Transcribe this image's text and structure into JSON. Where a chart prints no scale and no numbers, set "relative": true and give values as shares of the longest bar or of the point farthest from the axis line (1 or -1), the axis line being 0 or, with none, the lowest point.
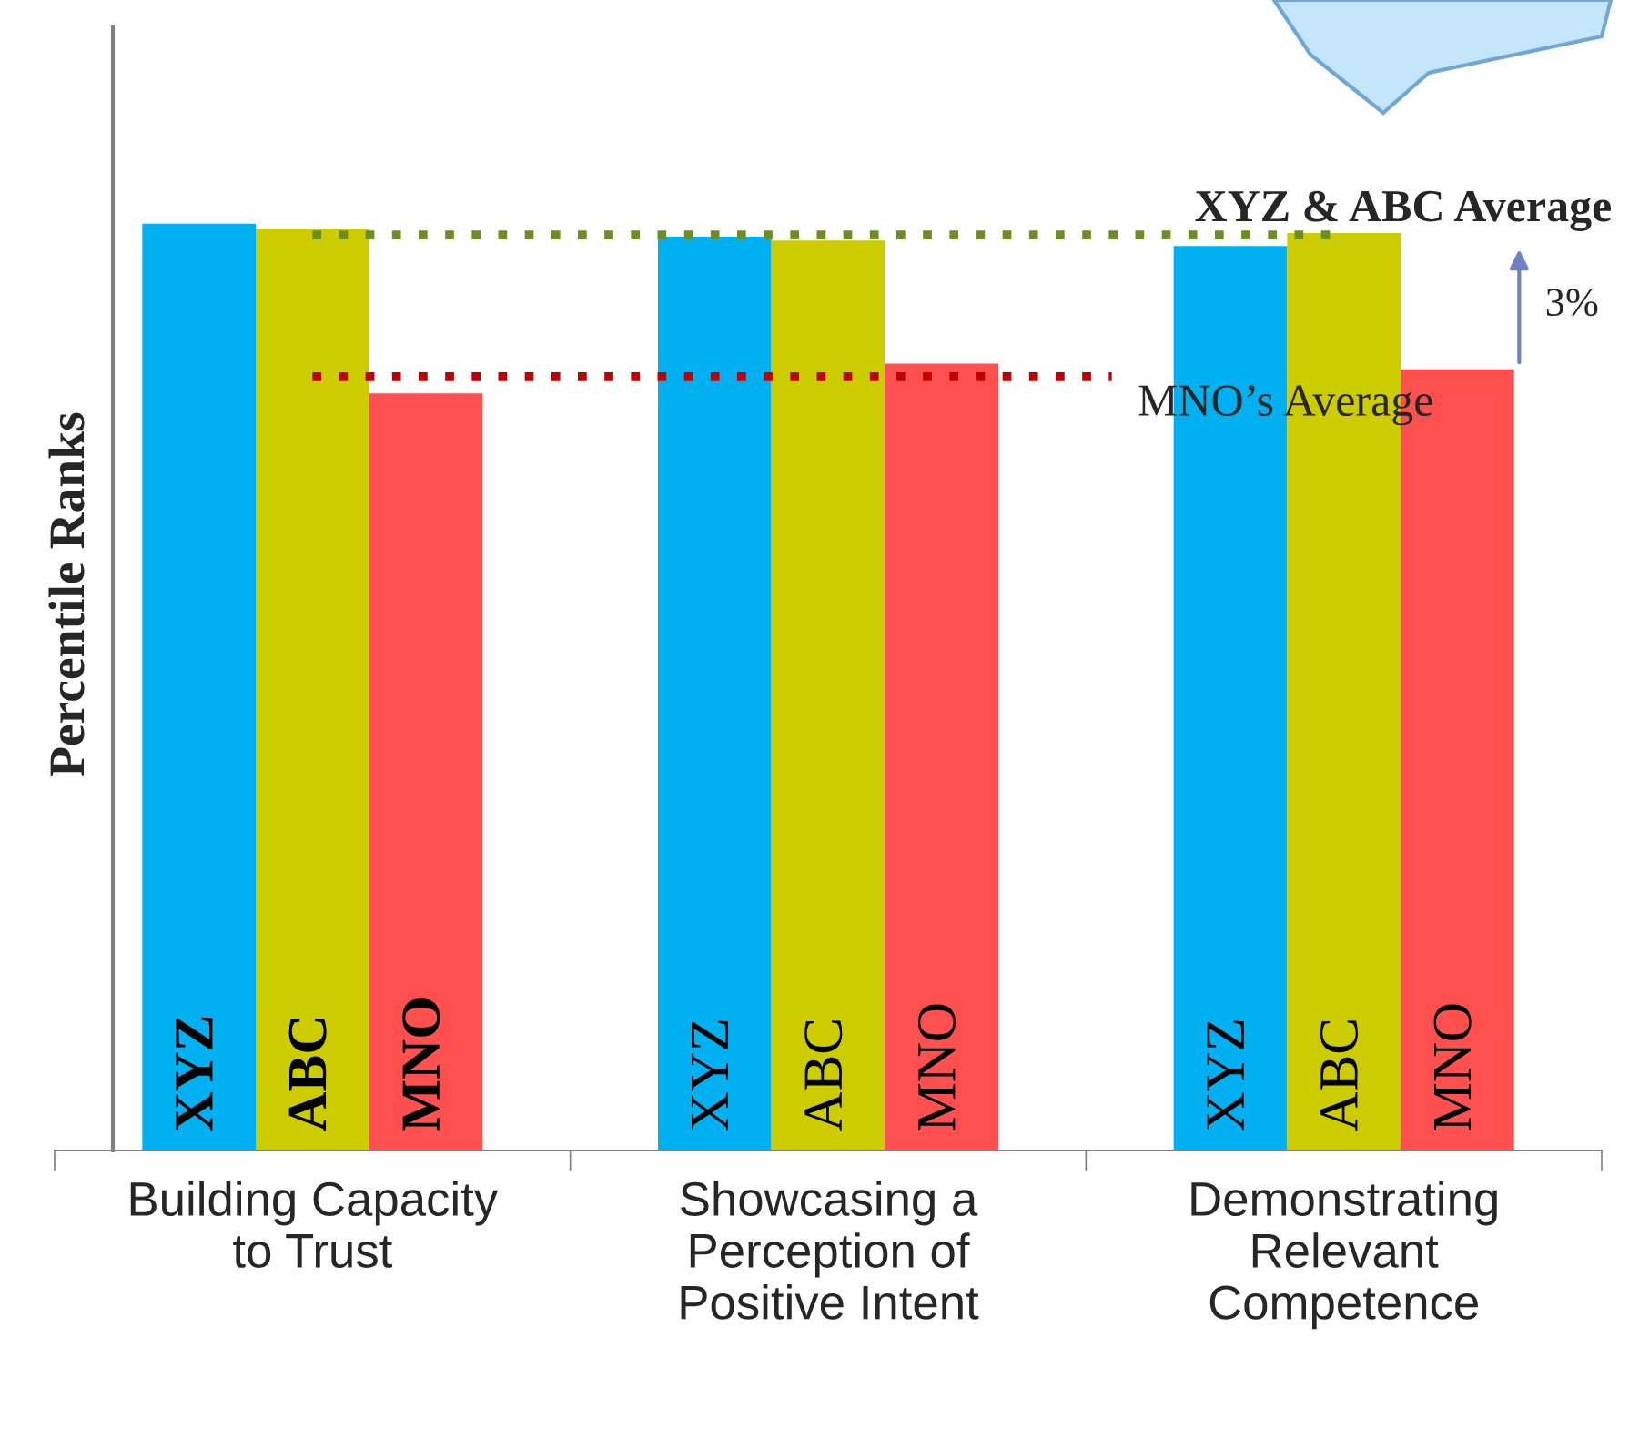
{
  "chart_data": {
    "type": "bar",
    "relative": true,
    "ylabel": "Percentile Ranks",
    "categories": [
      "Building Capacity\nto Trust",
      "Showcasing a\nPerception of\nPositive Intent",
      "Demonstrating\nRelevant\nCompetence"
    ],
    "series": [
      {
        "name": "XYZ",
        "color": "#00b0f0",
        "values": [
          1.0,
          0.986,
          0.976
        ]
      },
      {
        "name": "ABC",
        "color": "#cccc00",
        "values": [
          0.994,
          0.982,
          0.99
        ]
      },
      {
        "name": "MNO",
        "color": "#ff5050",
        "values": [
          0.817,
          0.849,
          0.843
        ]
      }
    ],
    "ref_lines": [
      {
        "axis": "y",
        "value": 0.988,
        "label": "XYZ & ABC Average",
        "color": "#6b8e23",
        "line_style": "dotted"
      },
      {
        "axis": "y",
        "value": 0.835,
        "label": "MNO’s Average",
        "color": "#c00000",
        "line_style": "dotted"
      }
    ],
    "annotations": [
      "3%"
    ],
    "grid": false
  }
}
